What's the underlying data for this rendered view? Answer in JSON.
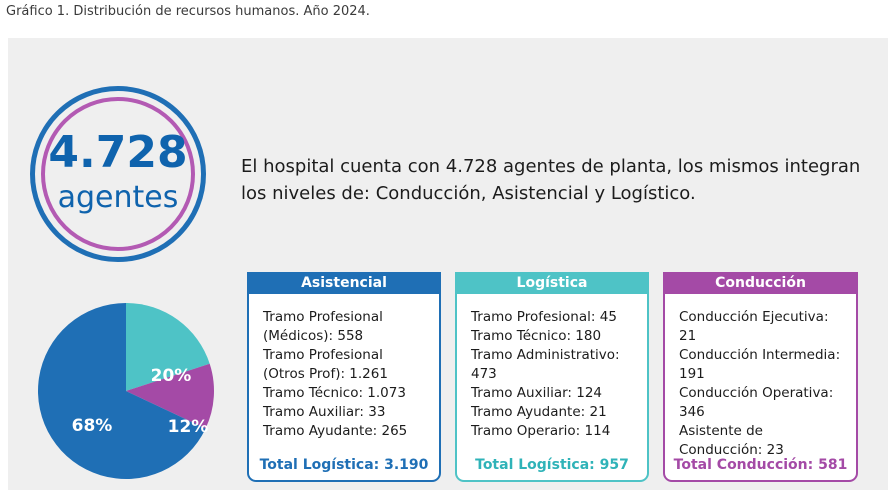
{
  "caption": "Gráfico 1. Distribución de recursos humanos. Año 2024.",
  "highlight": {
    "number": "4.728",
    "unit": "agentes"
  },
  "intro_line1": "El hospital cuenta con 4.728 agentes de planta, los mismos integran",
  "intro_line2": "los niveles de: Conducción, Asistencial y Logístico.",
  "colors": {
    "asistencial": "#1f6fb5",
    "logistica": "#4ec3c6",
    "conduccion": "#a44aa6"
  },
  "chart_data": {
    "type": "pie",
    "slices": [
      {
        "name": "Asistencial",
        "value": 68,
        "label": "68%",
        "color": "#1f6fb5"
      },
      {
        "name": "Logística",
        "value": 20,
        "label": "20%",
        "color": "#4ec3c6"
      },
      {
        "name": "Conducción",
        "value": 12,
        "label": "12%",
        "color": "#a44aa6"
      }
    ]
  },
  "boxes": [
    {
      "title": "Asistencial",
      "lines": [
        "Tramo Profesional",
        "(Médicos): 558",
        "Tramo Profesional",
        "(Otros Prof): 1.261",
        "Tramo Técnico: 1.073",
        "Tramo Auxiliar: 33",
        "Tramo Ayudante: 265"
      ],
      "total": "Total Logística: 3.190"
    },
    {
      "title": "Logística",
      "lines": [
        "Tramo Profesional: 45",
        "Tramo Técnico: 180",
        "Tramo Administrativo: 473",
        "Tramo Auxiliar: 124",
        "Tramo Ayudante: 21",
        "Tramo Operario: 114"
      ],
      "total": "Total Logística: 957"
    },
    {
      "title": "Conducción",
      "lines": [
        "Conducción Ejecutiva: 21",
        "Conducción Intermedia: 191",
        "Conducción Operativa: 346",
        "Asistente de Conducción: 23"
      ],
      "total": "Total Conducción: 581"
    }
  ]
}
